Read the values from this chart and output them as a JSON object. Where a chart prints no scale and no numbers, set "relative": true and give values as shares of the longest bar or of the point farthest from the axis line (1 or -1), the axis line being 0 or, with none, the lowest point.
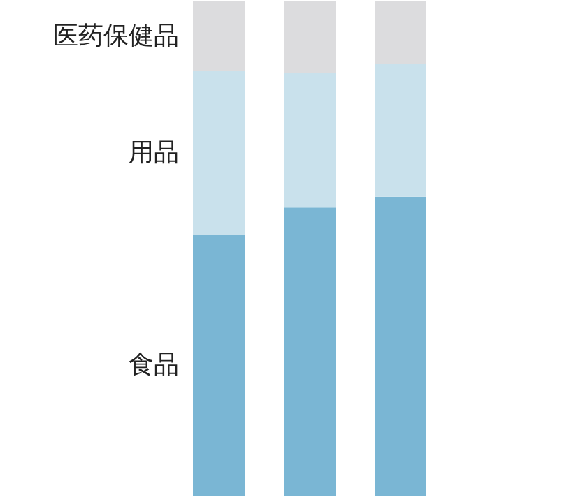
{
  "chart_data": {
    "type": "bar",
    "relative": true,
    "stacked": true,
    "legend": false,
    "categories": [
      null,
      null,
      null
    ],
    "series": [
      {
        "name": "食品",
        "color": "#7ab6d4",
        "values": [
          0.527,
          0.583,
          0.605
        ]
      },
      {
        "name": "用品",
        "color": "#c9e1ec",
        "values": [
          0.332,
          0.273,
          0.268
        ]
      },
      {
        "name": "医药保健品",
        "color": "#dcdcde",
        "values": [
          0.141,
          0.144,
          0.127
        ]
      }
    ]
  }
}
